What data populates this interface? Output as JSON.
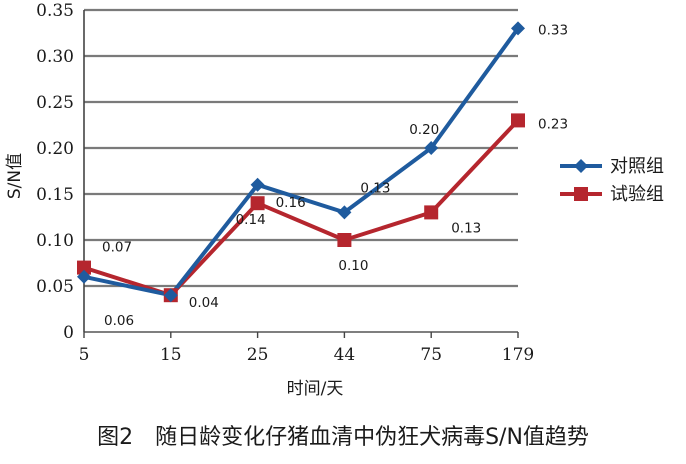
{
  "chart_data": {
    "type": "line",
    "xlabel": "时间/天",
    "ylabel": "S/N值",
    "categories": [
      "5",
      "15",
      "25",
      "44",
      "75",
      "179"
    ],
    "ylim": [
      0,
      0.35
    ],
    "yticks": [
      "0",
      "0.05",
      "0.10",
      "0.15",
      "0.20",
      "0.25",
      "0.30",
      "0.35"
    ],
    "grid": true,
    "legend_position": "right",
    "series": [
      {
        "name": "对照组",
        "color": "#1f5b9e",
        "marker": "diamond",
        "values": [
          0.06,
          0.04,
          0.16,
          0.13,
          0.2,
          0.33
        ],
        "labels": [
          "0.06",
          "",
          "0.16",
          "0.13",
          "0.20",
          "0.33"
        ]
      },
      {
        "name": "试验组",
        "color": "#b5262e",
        "marker": "square",
        "values": [
          0.07,
          0.04,
          0.14,
          0.1,
          0.13,
          0.23
        ],
        "labels": [
          "0.07",
          "0.04",
          "0.14",
          "0.10",
          "0.13",
          "0.23"
        ]
      }
    ]
  },
  "caption": "图2　随日龄变化仔猪血清中伪狂犬病毒S/N值趋势"
}
